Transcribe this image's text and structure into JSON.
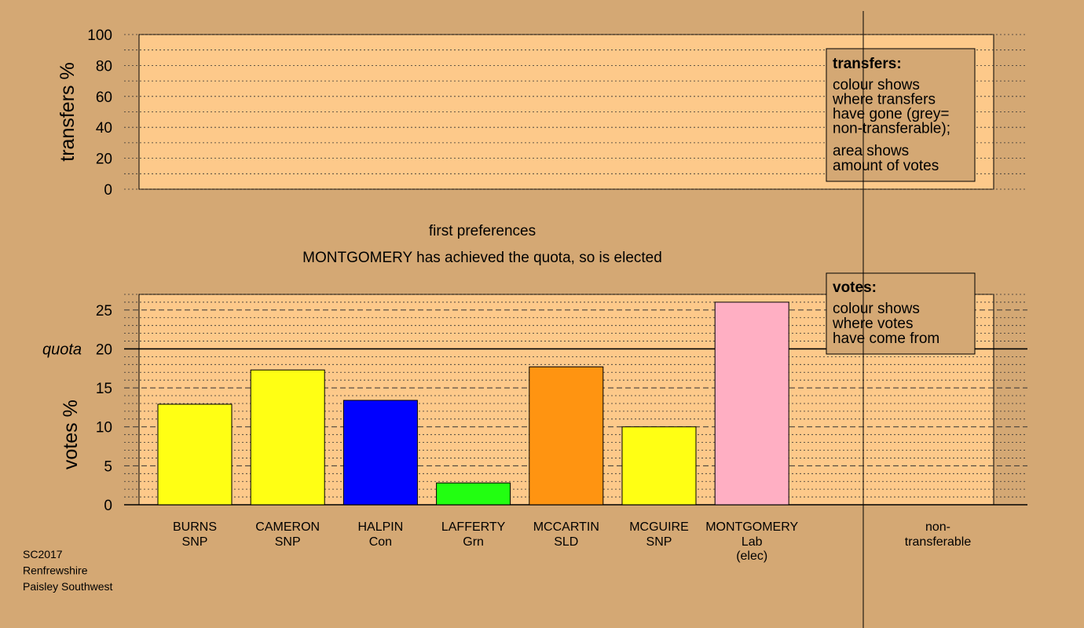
{
  "colors": {
    "background": "#d4a874",
    "panel": "#fdc98a",
    "quota_line": "#000000"
  },
  "transfers_panel": {
    "ylabel": "transfers %",
    "ylim": [
      0,
      100
    ],
    "yticks": [
      0,
      20,
      40,
      60,
      80,
      100
    ],
    "legend": {
      "title": "transfers:",
      "lines1": [
        "colour shows",
        "where transfers",
        "have gone (grey=",
        "non-transferable);"
      ],
      "lines2": [
        "area shows",
        "amount of votes"
      ]
    }
  },
  "stage_title": "first preferences",
  "stage_subtitle": "MONTGOMERY has achieved the quota, so is elected",
  "votes_legend": {
    "title": "votes:",
    "lines": [
      "colour shows",
      "where votes",
      "have come from"
    ]
  },
  "quota_label": "quota",
  "non_transferable_label": [
    "non-",
    "transferable"
  ],
  "footer": [
    "SC2017",
    "Renfrewshire",
    "Paisley Southwest"
  ],
  "chart_data": {
    "type": "bar",
    "ylabel": "votes %",
    "ylim": [
      0,
      27
    ],
    "yticks": [
      0,
      5,
      10,
      15,
      20,
      25
    ],
    "quota": 20,
    "categories": [
      {
        "name": "BURNS",
        "party": "SNP",
        "extra": ""
      },
      {
        "name": "CAMERON",
        "party": "SNP",
        "extra": ""
      },
      {
        "name": "HALPIN",
        "party": "Con",
        "extra": ""
      },
      {
        "name": "LAFFERTY",
        "party": "Grn",
        "extra": ""
      },
      {
        "name": "MCCARTIN",
        "party": "SLD",
        "extra": ""
      },
      {
        "name": "MCGUIRE",
        "party": "SNP",
        "extra": ""
      },
      {
        "name": "MONTGOMERY",
        "party": "Lab",
        "extra": "(elec)"
      }
    ],
    "values": [
      12.9,
      17.3,
      13.4,
      2.8,
      17.7,
      10.0,
      26.0
    ],
    "bar_colors": [
      "#ffff14",
      "#ffff14",
      "#0000ff",
      "#22ff11",
      "#ff9411",
      "#ffff14",
      "#ffafc3"
    ]
  }
}
